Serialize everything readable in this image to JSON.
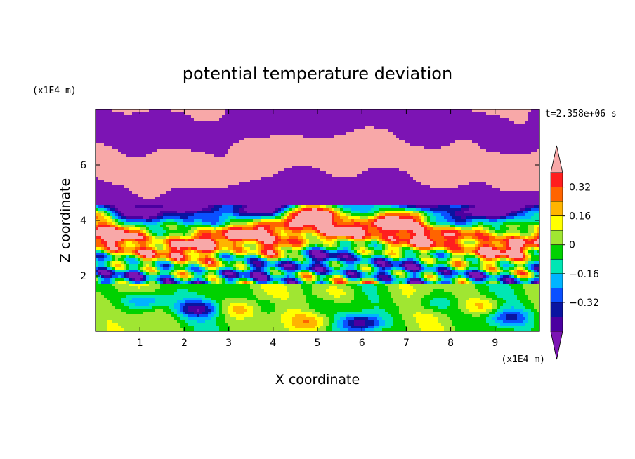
{
  "chart_data": {
    "type": "heatmap",
    "title": "potential temperature deviation",
    "xlabel": "X coordinate",
    "ylabel": "Z coordinate",
    "x_unit": "(x1E4 m)",
    "z_unit": "(x1E4 m)",
    "time_label": "t=2.358e+06 s",
    "xlim": [
      0,
      10
    ],
    "ylim": [
      0,
      8
    ],
    "x_ticks": [
      "1",
      "2",
      "3",
      "4",
      "5",
      "6",
      "7",
      "8",
      "9"
    ],
    "y_ticks": [
      "2",
      "4",
      "6"
    ],
    "colorbar": {
      "levels": [
        -0.48,
        -0.4,
        -0.32,
        -0.24,
        -0.16,
        -0.08,
        0,
        0.08,
        0.16,
        0.24,
        0.32,
        0.4,
        0.48
      ],
      "colors": [
        "#7c14b4",
        "#4b00a0",
        "#0a14a0",
        "#0a50ff",
        "#00b4ff",
        "#00e6b4",
        "#00d200",
        "#a0e632",
        "#ffff00",
        "#ffb400",
        "#ff6400",
        "#ff1e1e",
        "#f8a8a8"
      ],
      "extend": "both",
      "tick_labels": [
        "0.32",
        "0.16",
        "0",
        "−0.16",
        "−0.32"
      ],
      "tick_values": [
        0.32,
        0.16,
        0,
        -0.16,
        -0.32
      ]
    }
  }
}
